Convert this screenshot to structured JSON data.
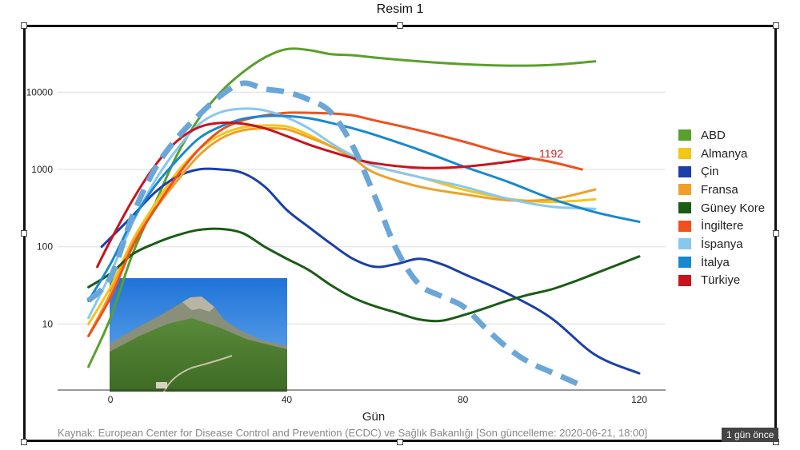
{
  "window_title": "Resim 1",
  "source_note": "Kaynak: European Center for Disease Control and Prevention (ECDC) ve Sağlık Bakanlığı [Son güncelleme: 2020-06-21, 18:00]",
  "badge": "1 gün önce",
  "annotation": {
    "text": "1192",
    "color": "#cc2222"
  },
  "chart_data": {
    "type": "line",
    "title": "",
    "xlabel": "Gün",
    "ylabel": "",
    "yscale": "log",
    "xlim": [
      -12,
      126
    ],
    "ylim": [
      1.4,
      60000
    ],
    "xticks": [
      0,
      40,
      80,
      120
    ],
    "yticks": [
      10,
      100,
      1000,
      10000
    ],
    "grid": "horizontal",
    "legend_position": "right",
    "series": [
      {
        "name": "ABD",
        "color": "#5aa02c",
        "points": [
          [
            -5,
            2.8
          ],
          [
            0,
            12
          ],
          [
            5,
            80
          ],
          [
            10,
            350
          ],
          [
            15,
            1500
          ],
          [
            20,
            4500
          ],
          [
            25,
            10000
          ],
          [
            30,
            18000
          ],
          [
            35,
            28000
          ],
          [
            40,
            36000
          ],
          [
            45,
            35000
          ],
          [
            50,
            31000
          ],
          [
            55,
            30000
          ],
          [
            60,
            28000
          ],
          [
            70,
            25000
          ],
          [
            80,
            23000
          ],
          [
            90,
            22000
          ],
          [
            100,
            22500
          ],
          [
            110,
            25000
          ]
        ]
      },
      {
        "name": "Almanya",
        "color": "#f5c518",
        "points": [
          [
            -5,
            10
          ],
          [
            0,
            30
          ],
          [
            5,
            120
          ],
          [
            10,
            350
          ],
          [
            15,
            900
          ],
          [
            20,
            1800
          ],
          [
            25,
            2800
          ],
          [
            30,
            3500
          ],
          [
            35,
            3700
          ],
          [
            40,
            3600
          ],
          [
            45,
            2800
          ],
          [
            50,
            2000
          ],
          [
            55,
            1500
          ],
          [
            60,
            1100
          ],
          [
            70,
            800
          ],
          [
            80,
            550
          ],
          [
            90,
            420
          ],
          [
            100,
            380
          ],
          [
            110,
            410
          ]
        ]
      },
      {
        "name": "Çin",
        "color": "#1a3faa",
        "points": [
          [
            -2,
            100
          ],
          [
            5,
            250
          ],
          [
            10,
            500
          ],
          [
            15,
            800
          ],
          [
            20,
            1000
          ],
          [
            25,
            1000
          ],
          [
            30,
            900
          ],
          [
            35,
            600
          ],
          [
            40,
            300
          ],
          [
            45,
            180
          ],
          [
            50,
            110
          ],
          [
            55,
            70
          ],
          [
            60,
            55
          ],
          [
            65,
            60
          ],
          [
            70,
            70
          ],
          [
            75,
            60
          ],
          [
            80,
            45
          ],
          [
            90,
            25
          ],
          [
            100,
            12
          ],
          [
            110,
            4
          ],
          [
            120,
            2.3
          ]
        ]
      },
      {
        "name": "Fransa",
        "color": "#f0a028",
        "points": [
          [
            -5,
            7
          ],
          [
            0,
            25
          ],
          [
            5,
            110
          ],
          [
            10,
            300
          ],
          [
            15,
            700
          ],
          [
            20,
            1500
          ],
          [
            25,
            2500
          ],
          [
            30,
            3200
          ],
          [
            35,
            3400
          ],
          [
            40,
            3300
          ],
          [
            45,
            2600
          ],
          [
            50,
            2000
          ],
          [
            55,
            1400
          ],
          [
            60,
            900
          ],
          [
            70,
            600
          ],
          [
            80,
            480
          ],
          [
            90,
            400
          ],
          [
            100,
            410
          ],
          [
            110,
            550
          ]
        ]
      },
      {
        "name": "Güney Kore",
        "color": "#1a5c14",
        "points": [
          [
            -5,
            30
          ],
          [
            0,
            45
          ],
          [
            5,
            80
          ],
          [
            10,
            110
          ],
          [
            15,
            140
          ],
          [
            20,
            165
          ],
          [
            25,
            170
          ],
          [
            30,
            150
          ],
          [
            35,
            100
          ],
          [
            40,
            70
          ],
          [
            45,
            50
          ],
          [
            50,
            32
          ],
          [
            55,
            22
          ],
          [
            60,
            17
          ],
          [
            65,
            14
          ],
          [
            70,
            11.5
          ],
          [
            75,
            11
          ],
          [
            80,
            13
          ],
          [
            85,
            16
          ],
          [
            90,
            20
          ],
          [
            95,
            24
          ],
          [
            100,
            28
          ],
          [
            105,
            35
          ],
          [
            110,
            45
          ],
          [
            120,
            75
          ]
        ]
      },
      {
        "name": "İngiltere",
        "color": "#f0501e",
        "points": [
          [
            -5,
            7
          ],
          [
            0,
            22
          ],
          [
            5,
            100
          ],
          [
            10,
            300
          ],
          [
            15,
            800
          ],
          [
            20,
            1800
          ],
          [
            25,
            3200
          ],
          [
            30,
            4300
          ],
          [
            35,
            5000
          ],
          [
            40,
            5400
          ],
          [
            45,
            5400
          ],
          [
            50,
            5300
          ],
          [
            55,
            5000
          ],
          [
            60,
            4300
          ],
          [
            70,
            3200
          ],
          [
            80,
            2300
          ],
          [
            90,
            1600
          ],
          [
            100,
            1250
          ],
          [
            107,
            1000
          ]
        ]
      },
      {
        "name": "İspanya",
        "color": "#88c8ee",
        "points": [
          [
            -5,
            12
          ],
          [
            0,
            45
          ],
          [
            5,
            200
          ],
          [
            10,
            700
          ],
          [
            15,
            1800
          ],
          [
            20,
            3800
          ],
          [
            25,
            5500
          ],
          [
            30,
            6100
          ],
          [
            35,
            5800
          ],
          [
            40,
            4700
          ],
          [
            45,
            3400
          ],
          [
            50,
            2200
          ],
          [
            55,
            1500
          ],
          [
            60,
            1100
          ],
          [
            70,
            800
          ],
          [
            80,
            600
          ],
          [
            90,
            420
          ],
          [
            100,
            330
          ],
          [
            110,
            310
          ]
        ]
      },
      {
        "name": "İtalya",
        "color": "#1888d0",
        "points": [
          [
            -5,
            20
          ],
          [
            0,
            60
          ],
          [
            5,
            220
          ],
          [
            10,
            600
          ],
          [
            15,
            1300
          ],
          [
            20,
            2500
          ],
          [
            25,
            3600
          ],
          [
            30,
            4500
          ],
          [
            35,
            4900
          ],
          [
            40,
            4900
          ],
          [
            45,
            4600
          ],
          [
            50,
            4000
          ],
          [
            55,
            3400
          ],
          [
            60,
            2800
          ],
          [
            70,
            1800
          ],
          [
            80,
            1100
          ],
          [
            90,
            700
          ],
          [
            100,
            420
          ],
          [
            110,
            280
          ],
          [
            120,
            210
          ]
        ]
      },
      {
        "name": "Türkiye",
        "color": "#c8141e",
        "points": [
          [
            -3,
            55
          ],
          [
            0,
            120
          ],
          [
            5,
            400
          ],
          [
            10,
            1100
          ],
          [
            15,
            2300
          ],
          [
            20,
            3500
          ],
          [
            25,
            4000
          ],
          [
            30,
            3900
          ],
          [
            35,
            3400
          ],
          [
            40,
            2700
          ],
          [
            45,
            2100
          ],
          [
            50,
            1700
          ],
          [
            55,
            1400
          ],
          [
            60,
            1200
          ],
          [
            70,
            1050
          ],
          [
            80,
            1080
          ],
          [
            90,
            1250
          ],
          [
            95,
            1380
          ]
        ]
      },
      {
        "name": "",
        "color": "#6aa6d8",
        "dashed": true,
        "points": [
          [
            -5,
            20
          ],
          [
            0,
            40
          ],
          [
            5,
            250
          ],
          [
            10,
            1000
          ],
          [
            15,
            2500
          ],
          [
            20,
            5000
          ],
          [
            25,
            9000
          ],
          [
            30,
            13000
          ],
          [
            35,
            11000
          ],
          [
            40,
            10000
          ],
          [
            45,
            8000
          ],
          [
            50,
            5500
          ],
          [
            55,
            2000
          ],
          [
            60,
            450
          ],
          [
            65,
            90
          ],
          [
            70,
            33
          ],
          [
            75,
            23
          ],
          [
            80,
            17
          ],
          [
            85,
            9
          ],
          [
            90,
            5
          ],
          [
            95,
            3.2
          ],
          [
            100,
            2.4
          ],
          [
            107,
            1.6
          ]
        ]
      }
    ]
  }
}
